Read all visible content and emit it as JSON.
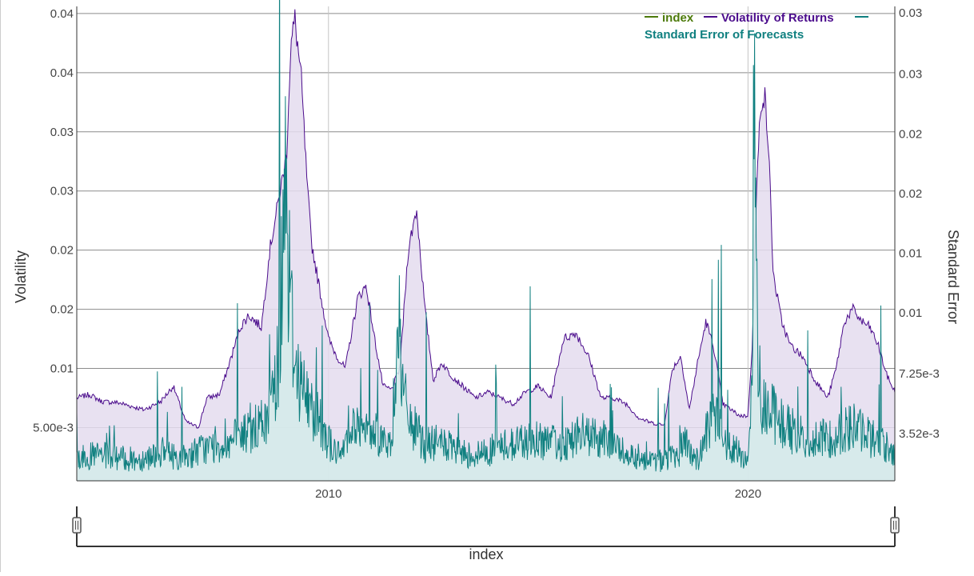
{
  "chart_data": {
    "type": "area",
    "title": "",
    "xlabel": "index",
    "ylabel_left": "Volatility",
    "ylabel_right": "Standard Error",
    "x_range": [
      2004.0,
      2023.5
    ],
    "x_ticks": [
      {
        "value": 2010,
        "label": "2010"
      },
      {
        "value": 2020,
        "label": "2020"
      }
    ],
    "y_left_range": [
      0.0005,
      0.0406
    ],
    "y_left_ticks": [
      {
        "value": 0.005,
        "label": "5.00e-3"
      },
      {
        "value": 0.01,
        "label": "0.01"
      },
      {
        "value": 0.015,
        "label": "0.02"
      },
      {
        "value": 0.02,
        "label": "0.02"
      },
      {
        "value": 0.025,
        "label": "0.03"
      },
      {
        "value": 0.03,
        "label": "0.03"
      },
      {
        "value": 0.035,
        "label": "0.04"
      },
      {
        "value": 0.04,
        "label": "0.04"
      }
    ],
    "y_right_range": [
      0.0006,
      0.03
    ],
    "y_right_ticks": [
      {
        "value": 0.00352,
        "label": "3.52e-3"
      },
      {
        "value": 0.00725,
        "label": "7.25e-3"
      },
      {
        "value": 0.011,
        "label": "0.01"
      },
      {
        "value": 0.0147,
        "label": "0.01"
      },
      {
        "value": 0.0184,
        "label": "0.02"
      },
      {
        "value": 0.0221,
        "label": "0.02"
      },
      {
        "value": 0.0258,
        "label": "0.03"
      },
      {
        "value": 0.0296,
        "label": "0.03"
      }
    ],
    "legend": {
      "placement": "top-right",
      "entries": [
        "index",
        "Volatility of Returns",
        "Standard Error of Forecasts"
      ]
    },
    "colors": {
      "index": "#4c7a0a",
      "volatility": "#4b0c8c",
      "volatility_fill": "#e4dcef",
      "stderr": "#108080",
      "stderr_fill": "#d4ebea",
      "grid": "#8c8c8c",
      "axis_text": "#444444"
    },
    "grid": true,
    "series": [
      {
        "name": "Volatility of Returns",
        "axis": "left",
        "x": [
          2004.0,
          2004.3,
          2004.6,
          2005.0,
          2005.3,
          2005.6,
          2006.0,
          2006.3,
          2006.6,
          2006.9,
          2007.1,
          2007.4,
          2007.6,
          2007.9,
          2008.1,
          2008.4,
          2008.6,
          2008.8,
          2009.0,
          2009.1,
          2009.2,
          2009.35,
          2009.5,
          2009.6,
          2009.8,
          2010.0,
          2010.2,
          2010.4,
          2010.5,
          2010.7,
          2010.9,
          2011.1,
          2011.3,
          2011.5,
          2011.7,
          2011.9,
          2012.1,
          2012.3,
          2012.5,
          2012.7,
          2012.9,
          2013.2,
          2013.5,
          2013.8,
          2014.1,
          2014.4,
          2014.7,
          2015.0,
          2015.3,
          2015.6,
          2015.9,
          2016.2,
          2016.5,
          2016.8,
          2017.1,
          2017.4,
          2017.7,
          2018.0,
          2018.2,
          2018.4,
          2018.6,
          2018.8,
          2019.0,
          2019.2,
          2019.4,
          2019.6,
          2019.8,
          2020.0,
          2020.1,
          2020.2,
          2020.3,
          2020.4,
          2020.5,
          2020.6,
          2020.8,
          2021.0,
          2021.3,
          2021.6,
          2021.9,
          2022.1,
          2022.3,
          2022.5,
          2022.7,
          2022.9,
          2023.1,
          2023.3,
          2023.5
        ],
        "values": [
          0.0075,
          0.0078,
          0.0072,
          0.0071,
          0.0068,
          0.0065,
          0.0072,
          0.0085,
          0.0055,
          0.005,
          0.0075,
          0.0078,
          0.01,
          0.0135,
          0.0145,
          0.0135,
          0.02,
          0.024,
          0.028,
          0.0372,
          0.0395,
          0.0345,
          0.025,
          0.0205,
          0.0165,
          0.0125,
          0.011,
          0.01,
          0.012,
          0.016,
          0.017,
          0.0125,
          0.0085,
          0.0082,
          0.01,
          0.02,
          0.0235,
          0.015,
          0.009,
          0.0105,
          0.0095,
          0.0085,
          0.0075,
          0.008,
          0.0075,
          0.007,
          0.008,
          0.0085,
          0.0075,
          0.0125,
          0.013,
          0.011,
          0.0075,
          0.0075,
          0.007,
          0.0058,
          0.0054,
          0.0052,
          0.01,
          0.011,
          0.0065,
          0.0105,
          0.014,
          0.0115,
          0.007,
          0.0065,
          0.006,
          0.006,
          0.012,
          0.0245,
          0.0325,
          0.033,
          0.028,
          0.018,
          0.014,
          0.012,
          0.011,
          0.009,
          0.0075,
          0.01,
          0.014,
          0.015,
          0.014,
          0.0135,
          0.012,
          0.0095,
          0.008
        ]
      },
      {
        "name": "Standard Error of Forecasts",
        "axis": "right",
        "x": [
          2004.0,
          2004.5,
          2005.0,
          2005.5,
          2006.0,
          2006.5,
          2007.0,
          2007.5,
          2008.0,
          2008.5,
          2008.7,
          2008.85,
          2008.95,
          2009.05,
          2009.15,
          2009.3,
          2009.5,
          2009.8,
          2010.0,
          2010.3,
          2010.5,
          2010.8,
          2011.1,
          2011.5,
          2011.65,
          2011.8,
          2012.0,
          2012.3,
          2012.7,
          2013.0,
          2013.5,
          2014.0,
          2014.5,
          2015.0,
          2015.5,
          2016.0,
          2016.5,
          2017.0,
          2017.5,
          2018.0,
          2018.3,
          2018.5,
          2018.8,
          2019.0,
          2019.2,
          2019.5,
          2019.8,
          2020.0,
          2020.1,
          2020.15,
          2020.2,
          2020.3,
          2020.5,
          2020.8,
          2021.0,
          2021.5,
          2022.0,
          2022.5,
          2023.0,
          2023.5
        ],
        "values": [
          0.002,
          0.0022,
          0.002,
          0.0019,
          0.0024,
          0.002,
          0.0026,
          0.0028,
          0.0035,
          0.0042,
          0.006,
          0.0095,
          0.0225,
          0.014,
          0.0095,
          0.007,
          0.0055,
          0.0045,
          0.003,
          0.002,
          0.0045,
          0.0035,
          0.0038,
          0.0025,
          0.011,
          0.0055,
          0.004,
          0.0028,
          0.003,
          0.0024,
          0.0022,
          0.0026,
          0.003,
          0.0032,
          0.0028,
          0.0035,
          0.0032,
          0.0025,
          0.002,
          0.0018,
          0.0022,
          0.003,
          0.0018,
          0.0035,
          0.0045,
          0.003,
          0.0022,
          0.002,
          0.007,
          0.028,
          0.012,
          0.006,
          0.005,
          0.0042,
          0.0038,
          0.003,
          0.0033,
          0.004,
          0.0032,
          0.0024
        ]
      }
    ],
    "range_slider": {
      "label": "index"
    }
  }
}
